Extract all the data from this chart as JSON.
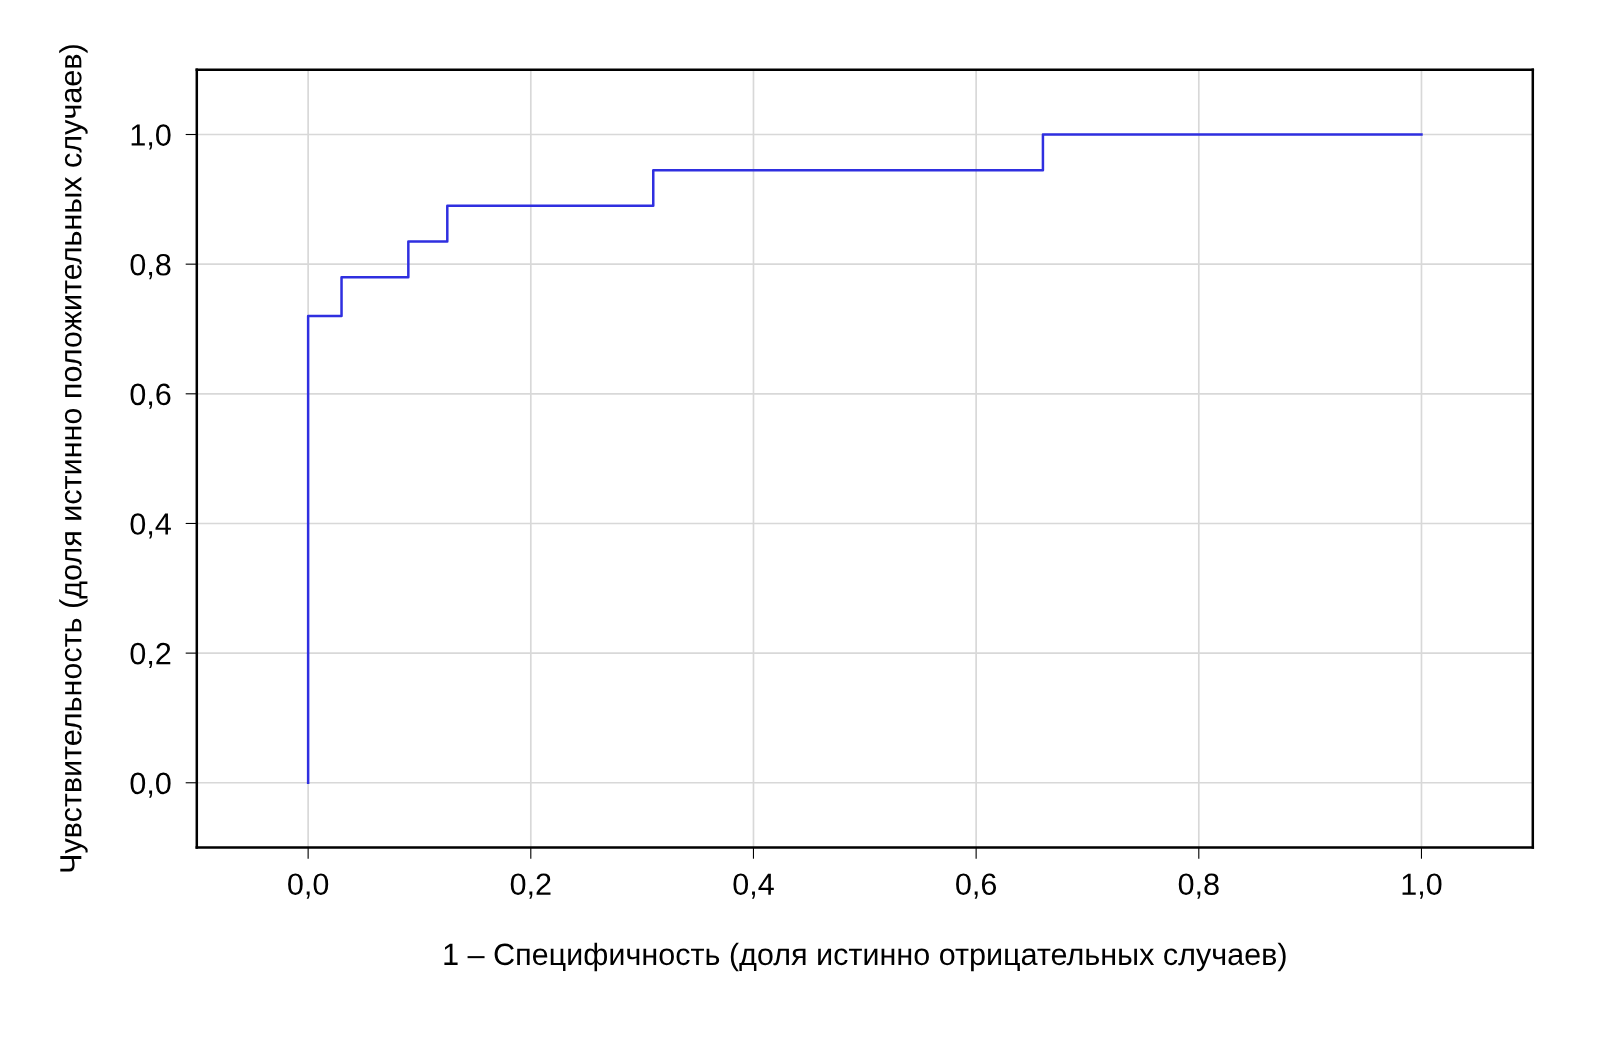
{
  "chart_data": {
    "type": "step",
    "xlabel": "1 – Специфичность (доля истинно отрицательных случаев)",
    "ylabel": "Чувствительность (доля истинно положительных случаев)",
    "x": [
      0,
      0,
      0.03,
      0.09,
      0.125,
      0.31,
      0.66,
      1.0
    ],
    "series": [
      {
        "color": "#2f2fe0",
        "values": [
          0,
          0.72,
          0.78,
          0.835,
          0.89,
          0.945,
          1.0,
          1.0
        ]
      }
    ],
    "xlim": [
      -0.1,
      1.1
    ],
    "ylim": [
      -0.1,
      1.1
    ],
    "xticks": [
      {
        "value": 0,
        "label": "0,0"
      },
      {
        "value": 0.2,
        "label": "0,2"
      },
      {
        "value": 0.4,
        "label": "0,4"
      },
      {
        "value": 0.6,
        "label": "0,6"
      },
      {
        "value": 0.8,
        "label": "0,8"
      },
      {
        "value": 1.0,
        "label": "1,0"
      }
    ],
    "yticks": [
      {
        "value": 0,
        "label": "0,0"
      },
      {
        "value": 0.2,
        "label": "0,2"
      },
      {
        "value": 0.4,
        "label": "0,4"
      },
      {
        "value": 0.6,
        "label": "0,6"
      },
      {
        "value": 0.8,
        "label": "0,8"
      },
      {
        "value": 1.0,
        "label": "1,0"
      }
    ],
    "grid": true,
    "line_style": "solid",
    "marker": "none"
  }
}
